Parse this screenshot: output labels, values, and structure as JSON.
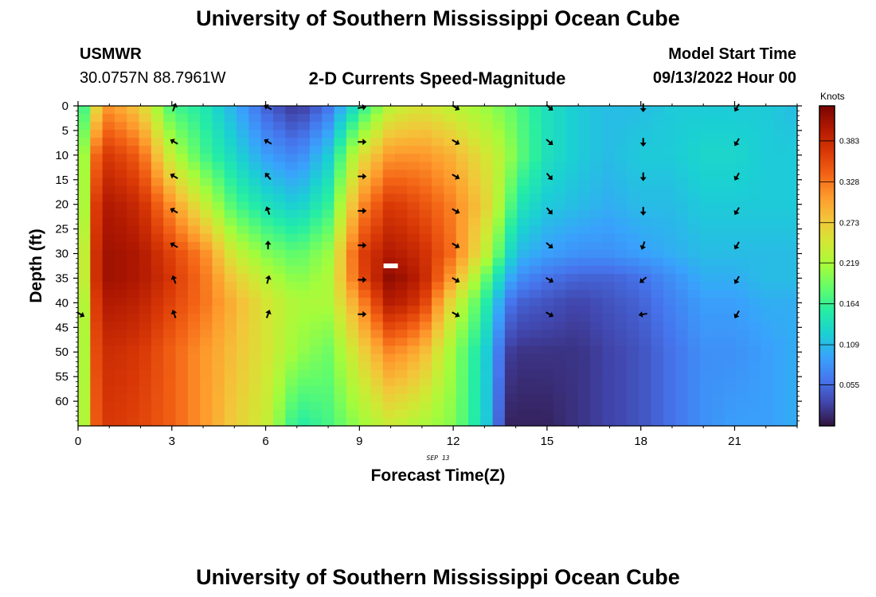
{
  "header": {
    "title": "University of Southern Mississippi Ocean Cube",
    "station_name": "USMWR",
    "station_coords": "30.0757N  88.7961W",
    "subtitle": "2-D Currents Speed-Magnitude",
    "model_start_label": "Model Start Time",
    "model_start_value": "09/13/2022 Hour 00"
  },
  "footer": {
    "title": "University of Southern Mississippi Ocean Cube"
  },
  "chart_data": {
    "type": "heatmap",
    "title": "2-D Currents Speed-Magnitude",
    "xlabel": "Forecast Time(Z)",
    "ylabel": "Depth (ft)",
    "date_label": "SEP 13",
    "xlim": [
      0,
      23
    ],
    "ylim": [
      0,
      65
    ],
    "x_ticks": [
      0,
      3,
      6,
      9,
      12,
      15,
      18,
      21
    ],
    "y_ticks": [
      0,
      5,
      10,
      15,
      20,
      25,
      30,
      35,
      40,
      45,
      50,
      55,
      60
    ],
    "colorbar": {
      "label": "Knots",
      "min": 0.0,
      "max": 0.43,
      "ticks": [
        "0.383",
        "0.328",
        "0.273",
        "0.219",
        "0.164",
        "0.109",
        "0.055"
      ],
      "colors": [
        "#30123b",
        "#4145ab",
        "#4675ed",
        "#39a2fc",
        "#1bcfd4",
        "#24eca6",
        "#61fc6c",
        "#a4fc3b",
        "#d1e834",
        "#f3c63a",
        "#fe9b2d",
        "#f36315",
        "#d93806",
        "#b11901",
        "#7a0402"
      ]
    },
    "speed_profiles": {
      "hours": [
        0,
        0.5,
        1,
        2,
        3,
        4,
        5,
        6,
        7,
        8,
        9,
        10,
        11,
        12,
        13,
        13.7,
        14,
        15,
        16,
        17,
        18,
        19,
        20,
        21,
        22,
        23
      ],
      "depths": [
        0,
        10,
        20,
        30,
        35,
        40,
        50,
        65
      ],
      "values": [
        [
          0.12,
          0.14,
          0.13,
          0.15,
          0.15,
          0.14,
          0.14,
          0.15
        ],
        [
          0.25,
          0.33,
          0.36,
          0.37,
          0.37,
          0.36,
          0.35,
          0.34
        ],
        [
          0.31,
          0.37,
          0.4,
          0.41,
          0.41,
          0.4,
          0.38,
          0.37
        ],
        [
          0.27,
          0.34,
          0.38,
          0.4,
          0.4,
          0.39,
          0.37,
          0.36
        ],
        [
          0.17,
          0.23,
          0.31,
          0.36,
          0.37,
          0.36,
          0.34,
          0.34
        ],
        [
          0.15,
          0.17,
          0.24,
          0.32,
          0.33,
          0.33,
          0.31,
          0.31
        ],
        [
          0.1,
          0.13,
          0.17,
          0.24,
          0.27,
          0.29,
          0.28,
          0.27
        ],
        [
          0.05,
          0.09,
          0.14,
          0.2,
          0.23,
          0.25,
          0.25,
          0.24
        ],
        [
          0.02,
          0.07,
          0.12,
          0.18,
          0.2,
          0.22,
          0.21,
          0.15
        ],
        [
          0.06,
          0.12,
          0.16,
          0.21,
          0.22,
          0.22,
          0.19,
          0.17
        ],
        [
          0.15,
          0.25,
          0.31,
          0.36,
          0.35,
          0.31,
          0.26,
          0.21
        ],
        [
          0.23,
          0.31,
          0.37,
          0.4,
          0.42,
          0.4,
          0.32,
          0.24
        ],
        [
          0.25,
          0.31,
          0.35,
          0.38,
          0.39,
          0.37,
          0.29,
          0.22
        ],
        [
          0.23,
          0.29,
          0.32,
          0.33,
          0.3,
          0.25,
          0.21,
          0.2
        ],
        [
          0.21,
          0.25,
          0.27,
          0.24,
          0.19,
          0.16,
          0.13,
          0.13
        ],
        [
          0.19,
          0.22,
          0.2,
          0.15,
          0.11,
          0.07,
          0.03,
          0.01
        ],
        [
          0.18,
          0.19,
          0.15,
          0.11,
          0.08,
          0.05,
          0.02,
          0.01
        ],
        [
          0.14,
          0.14,
          0.12,
          0.09,
          0.06,
          0.04,
          0.02,
          0.01
        ],
        [
          0.12,
          0.12,
          0.11,
          0.08,
          0.05,
          0.03,
          0.02,
          0.02
        ],
        [
          0.11,
          0.11,
          0.1,
          0.08,
          0.05,
          0.04,
          0.03,
          0.03
        ],
        [
          0.11,
          0.12,
          0.11,
          0.09,
          0.06,
          0.05,
          0.04,
          0.04
        ],
        [
          0.12,
          0.12,
          0.11,
          0.1,
          0.08,
          0.07,
          0.06,
          0.06
        ],
        [
          0.12,
          0.13,
          0.12,
          0.11,
          0.1,
          0.09,
          0.08,
          0.08
        ],
        [
          0.12,
          0.13,
          0.12,
          0.11,
          0.1,
          0.09,
          0.08,
          0.09
        ],
        [
          0.12,
          0.12,
          0.12,
          0.11,
          0.11,
          0.1,
          0.09,
          0.09
        ],
        [
          0.11,
          0.12,
          0.12,
          0.11,
          0.11,
          0.1,
          0.1,
          0.1
        ]
      ]
    },
    "vectors": {
      "hours": [
        0,
        3,
        6,
        9,
        12,
        15,
        18,
        21
      ],
      "depths": [
        0,
        7,
        14,
        21,
        28,
        35,
        42
      ],
      "direction_deg": [
        [
          null,
          null,
          null,
          null,
          null,
          null,
          120
        ],
        [
          20,
          300,
          300,
          300,
          300,
          340,
          340
        ],
        [
          300,
          300,
          320,
          340,
          0,
          15,
          20
        ],
        [
          80,
          90,
          90,
          90,
          90,
          90,
          90
        ],
        [
          120,
          120,
          120,
          120,
          120,
          120,
          120
        ],
        [
          130,
          130,
          140,
          140,
          130,
          120,
          120
        ],
        [
          180,
          180,
          180,
          180,
          200,
          230,
          260
        ],
        [
          210,
          210,
          210,
          210,
          210,
          210,
          210
        ]
      ]
    },
    "marker": {
      "hour": 10.0,
      "depth": 32.5
    }
  }
}
